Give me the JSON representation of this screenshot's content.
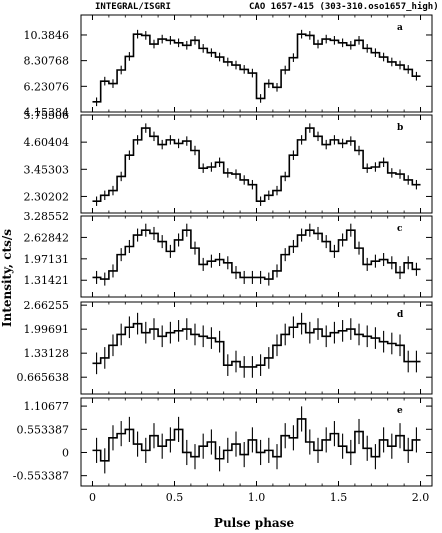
{
  "header": {
    "left": "INTEGRAL/ISGRI",
    "right": "CAO 1657-415 (303-310.oso1657_high)"
  },
  "xlabel": "Pulse phase",
  "ylabel": "Intensity, cts/s",
  "xticks": [
    {
      "v": 0,
      "label": "0"
    },
    {
      "v": 0.5,
      "label": "0.5"
    },
    {
      "v": 1,
      "label": "1.0"
    },
    {
      "v": 1.5,
      "label": "1.5"
    },
    {
      "v": 2,
      "label": "2.0"
    }
  ],
  "chart_data": {
    "type": "step",
    "x_range": [
      -0.07,
      2.07
    ],
    "panels": [
      {
        "label": "a",
        "ylim": [
          4.15384,
          12.0
        ],
        "yticks": [
          {
            "v": 4.15384,
            "label": "4.15384"
          },
          {
            "v": 6.23076,
            "label": "6.23076"
          },
          {
            "v": 8.30768,
            "label": "8.30768"
          },
          {
            "v": 10.3846,
            "label": "10.3846"
          }
        ],
        "values": [
          4.98,
          6.65,
          6.45,
          7.55,
          8.65,
          10.45,
          10.35,
          9.65,
          10.05,
          9.95,
          9.75,
          9.55,
          9.95,
          9.3,
          8.95,
          8.6,
          8.2,
          7.95,
          7.6,
          7.3,
          5.25,
          6.45,
          6.15,
          7.55,
          8.55,
          10.45,
          10.35,
          9.65,
          10.05,
          9.95,
          9.75,
          9.55,
          9.95,
          9.3,
          8.95,
          8.6,
          8.2,
          7.95,
          7.6,
          7.05
        ],
        "errors": [
          0.35,
          0.35,
          0.35,
          0.35,
          0.35,
          0.35,
          0.35,
          0.35,
          0.35,
          0.35,
          0.35,
          0.35,
          0.35,
          0.35,
          0.35,
          0.35,
          0.35,
          0.35,
          0.35,
          0.35,
          0.35,
          0.35,
          0.35,
          0.35,
          0.35,
          0.35,
          0.35,
          0.35,
          0.35,
          0.35,
          0.35,
          0.35,
          0.35,
          0.35,
          0.35,
          0.35,
          0.35,
          0.35,
          0.35,
          0.35
        ]
      },
      {
        "label": "b",
        "ylim": [
          1.6,
          5.75506
        ],
        "yticks": [
          {
            "v": 2.30202,
            "label": "2.30202"
          },
          {
            "v": 3.45303,
            "label": "3.45303"
          },
          {
            "v": 4.60404,
            "label": "4.60404"
          },
          {
            "v": 5.75506,
            "label": "5.75506"
          }
        ],
        "values": [
          2.1,
          2.35,
          2.55,
          3.15,
          4.05,
          4.7,
          5.2,
          4.85,
          4.5,
          4.7,
          4.55,
          4.65,
          4.25,
          3.5,
          3.55,
          3.75,
          3.3,
          3.25,
          3.0,
          2.8,
          2.1,
          2.35,
          2.55,
          3.15,
          4.05,
          4.7,
          5.2,
          4.85,
          4.5,
          4.7,
          4.55,
          4.65,
          4.25,
          3.5,
          3.55,
          3.75,
          3.3,
          3.25,
          3.0,
          2.8
        ],
        "errors": [
          0.2,
          0.2,
          0.2,
          0.2,
          0.2,
          0.2,
          0.2,
          0.2,
          0.2,
          0.2,
          0.2,
          0.2,
          0.2,
          0.2,
          0.2,
          0.2,
          0.2,
          0.2,
          0.2,
          0.2,
          0.2,
          0.2,
          0.2,
          0.2,
          0.2,
          0.2,
          0.2,
          0.2,
          0.2,
          0.2,
          0.2,
          0.2,
          0.2,
          0.2,
          0.2,
          0.2,
          0.2,
          0.2,
          0.2,
          0.2
        ]
      },
      {
        "label": "c",
        "ylim": [
          0.8,
          3.28552
        ],
        "yticks": [
          {
            "v": 1.31421,
            "label": "1.31421"
          },
          {
            "v": 1.97131,
            "label": "1.97131"
          },
          {
            "v": 2.62842,
            "label": "2.62842"
          },
          {
            "v": 3.28552,
            "label": "3.28552"
          }
        ],
        "values": [
          1.4,
          1.35,
          1.6,
          2.1,
          2.35,
          2.7,
          2.85,
          2.75,
          2.5,
          2.2,
          2.55,
          2.85,
          2.3,
          1.8,
          1.9,
          1.95,
          1.85,
          1.55,
          1.4,
          1.4,
          1.4,
          1.35,
          1.6,
          2.1,
          2.35,
          2.7,
          2.85,
          2.75,
          2.5,
          2.2,
          2.55,
          2.85,
          2.3,
          1.8,
          1.9,
          1.95,
          1.85,
          1.55,
          1.85,
          1.65
        ],
        "errors": [
          0.2,
          0.2,
          0.2,
          0.2,
          0.2,
          0.2,
          0.2,
          0.2,
          0.2,
          0.2,
          0.2,
          0.2,
          0.2,
          0.2,
          0.2,
          0.2,
          0.2,
          0.2,
          0.2,
          0.2,
          0.2,
          0.2,
          0.2,
          0.2,
          0.2,
          0.2,
          0.2,
          0.2,
          0.2,
          0.2,
          0.2,
          0.2,
          0.2,
          0.2,
          0.2,
          0.2,
          0.2,
          0.2,
          0.2,
          0.2
        ]
      },
      {
        "label": "d",
        "ylim": [
          0.2,
          2.75
        ],
        "yticks": [
          {
            "v": 0.665638,
            "label": "0.665638"
          },
          {
            "v": 1.33128,
            "label": "1.33128"
          },
          {
            "v": 1.99691,
            "label": "1.99691"
          },
          {
            "v": 2.66255,
            "label": "2.66255"
          }
        ],
        "values": [
          1.05,
          1.2,
          1.55,
          1.85,
          2.05,
          2.15,
          1.9,
          2.0,
          1.8,
          1.9,
          1.95,
          2.0,
          1.85,
          1.8,
          1.75,
          1.65,
          1.0,
          1.1,
          0.95,
          0.95,
          1.0,
          1.2,
          1.55,
          1.85,
          2.05,
          2.15,
          1.9,
          2.0,
          1.8,
          1.9,
          1.95,
          2.0,
          1.85,
          1.8,
          1.75,
          1.65,
          1.6,
          1.55,
          1.1,
          1.1
        ],
        "errors": [
          0.3,
          0.3,
          0.3,
          0.3,
          0.3,
          0.3,
          0.3,
          0.3,
          0.3,
          0.3,
          0.3,
          0.3,
          0.3,
          0.3,
          0.3,
          0.3,
          0.3,
          0.3,
          0.3,
          0.3,
          0.3,
          0.3,
          0.3,
          0.3,
          0.3,
          0.3,
          0.3,
          0.3,
          0.3,
          0.3,
          0.3,
          0.3,
          0.3,
          0.3,
          0.3,
          0.3,
          0.3,
          0.3,
          0.3,
          0.3
        ]
      },
      {
        "label": "e",
        "ylim": [
          -0.8,
          1.3
        ],
        "yticks": [
          {
            "v": -0.553387,
            "label": "-0.553387"
          },
          {
            "v": 0,
            "label": "0"
          },
          {
            "v": 0.553387,
            "label": "0.553387"
          },
          {
            "v": 1.10677,
            "label": "1.10677"
          }
        ],
        "values": [
          0.05,
          -0.2,
          0.35,
          0.45,
          0.55,
          0.2,
          0.05,
          0.4,
          0.15,
          0.3,
          0.55,
          0.0,
          -0.1,
          0.15,
          0.25,
          -0.15,
          0.05,
          0.2,
          -0.05,
          0.3,
          0.0,
          0.05,
          -0.1,
          0.4,
          0.35,
          0.8,
          0.25,
          0.05,
          0.3,
          0.45,
          0.15,
          0.0,
          0.5,
          0.1,
          -0.1,
          0.3,
          0.15,
          0.4,
          0.05,
          0.3
        ],
        "errors": [
          0.3,
          0.3,
          0.3,
          0.3,
          0.3,
          0.3,
          0.3,
          0.3,
          0.3,
          0.3,
          0.3,
          0.3,
          0.3,
          0.3,
          0.3,
          0.3,
          0.3,
          0.3,
          0.3,
          0.3,
          0.3,
          0.3,
          0.3,
          0.3,
          0.3,
          0.3,
          0.3,
          0.3,
          0.3,
          0.3,
          0.3,
          0.3,
          0.3,
          0.3,
          0.3,
          0.3,
          0.3,
          0.3,
          0.3,
          0.3
        ]
      }
    ]
  }
}
